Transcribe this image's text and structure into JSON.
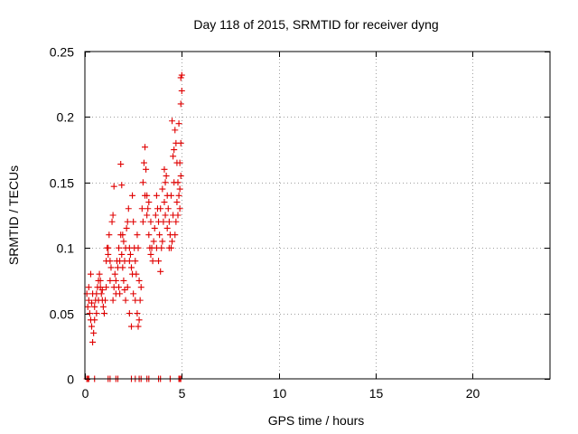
{
  "chart_data": {
    "type": "scatter",
    "title": "Day 118 of 2015, SRMTID for receiver dyng",
    "xlabel": "GPS time / hours",
    "ylabel": "SRMTID / TECUs",
    "xlim": [
      0,
      24
    ],
    "ylim": [
      0,
      0.25
    ],
    "xticks": [
      0,
      5,
      10,
      15,
      20
    ],
    "xtick_labels": [
      "0",
      "5",
      "10",
      "15",
      "20"
    ],
    "yticks": [
      0,
      0.05,
      0.1,
      0.15,
      0.2,
      0.25
    ],
    "ytick_labels": [
      "0",
      "0.05",
      "0.1",
      "0.15",
      "0.2",
      "0.25"
    ],
    "grid": true,
    "marker": "plus",
    "series": [
      {
        "name": "SRMTID",
        "color": "#e00000",
        "points": [
          [
            0.1,
            0.065
          ],
          [
            0.2,
            0.06
          ],
          [
            0.25,
            0.05
          ],
          [
            0.3,
            0.045
          ],
          [
            0.35,
            0.04
          ],
          [
            0.4,
            0.028
          ],
          [
            0.45,
            0.035
          ],
          [
            0.5,
            0.055
          ],
          [
            0.55,
            0.06
          ],
          [
            0.6,
            0.065
          ],
          [
            0.65,
            0.07
          ],
          [
            0.7,
            0.075
          ],
          [
            0.75,
            0.08
          ],
          [
            0.8,
            0.07
          ],
          [
            0.85,
            0.065
          ],
          [
            0.9,
            0.06
          ],
          [
            0.95,
            0.055
          ],
          [
            1.0,
            0.05
          ],
          [
            1.05,
            0.06
          ],
          [
            1.1,
            0.07
          ],
          [
            0.2,
            0.07
          ],
          [
            0.3,
            0.08
          ],
          [
            0.4,
            0.065
          ],
          [
            0.5,
            0.045
          ],
          [
            0.6,
            0.05
          ],
          [
            0.7,
            0.06
          ],
          [
            0.8,
            0.075
          ],
          [
            0.9,
            0.068
          ],
          [
            0.15,
            0.055
          ],
          [
            0.35,
            0.058
          ],
          [
            1.15,
            0.1
          ],
          [
            1.2,
            0.095
          ],
          [
            1.25,
            0.11
          ],
          [
            1.3,
            0.09
          ],
          [
            1.35,
            0.085
          ],
          [
            1.4,
            0.12
          ],
          [
            1.45,
            0.125
          ],
          [
            1.5,
            0.147
          ],
          [
            1.55,
            0.08
          ],
          [
            1.6,
            0.075
          ],
          [
            1.1,
            0.09
          ],
          [
            1.2,
            0.1
          ],
          [
            1.3,
            0.075
          ],
          [
            1.45,
            0.06
          ],
          [
            1.5,
            0.07
          ],
          [
            1.6,
            0.065
          ],
          [
            1.65,
            0.09
          ],
          [
            1.7,
            0.085
          ],
          [
            1.75,
            0.07
          ],
          [
            1.8,
            0.065
          ],
          [
            1.85,
            0.164
          ],
          [
            1.9,
            0.148
          ],
          [
            1.95,
            0.11
          ],
          [
            2.0,
            0.105
          ],
          [
            2.05,
            0.09
          ],
          [
            2.1,
            0.1
          ],
          [
            2.15,
            0.115
          ],
          [
            2.2,
            0.12
          ],
          [
            2.25,
            0.13
          ],
          [
            2.3,
            0.1
          ],
          [
            1.85,
            0.11
          ],
          [
            1.9,
            0.095
          ],
          [
            1.95,
            0.085
          ],
          [
            2.0,
            0.075
          ],
          [
            2.05,
            0.068
          ],
          [
            2.1,
            0.06
          ],
          [
            2.2,
            0.07
          ],
          [
            2.3,
            0.09
          ],
          [
            1.8,
            0.09
          ],
          [
            1.75,
            0.1
          ],
          [
            2.35,
            0.095
          ],
          [
            2.4,
            0.085
          ],
          [
            2.45,
            0.14
          ],
          [
            2.5,
            0.12
          ],
          [
            2.55,
            0.1
          ],
          [
            2.6,
            0.09
          ],
          [
            2.65,
            0.08
          ],
          [
            2.7,
            0.11
          ],
          [
            2.75,
            0.1
          ],
          [
            2.8,
            0.075
          ],
          [
            2.4,
            0.04
          ],
          [
            2.5,
            0.065
          ],
          [
            2.6,
            0.06
          ],
          [
            2.7,
            0.05
          ],
          [
            2.75,
            0.04
          ],
          [
            2.8,
            0.045
          ],
          [
            2.85,
            0.06
          ],
          [
            2.9,
            0.07
          ],
          [
            2.3,
            0.05
          ],
          [
            2.45,
            0.08
          ],
          [
            2.95,
            0.13
          ],
          [
            3.0,
            0.12
          ],
          [
            3.05,
            0.165
          ],
          [
            3.1,
            0.177
          ],
          [
            3.15,
            0.16
          ],
          [
            3.2,
            0.14
          ],
          [
            3.25,
            0.13
          ],
          [
            3.3,
            0.11
          ],
          [
            3.35,
            0.1
          ],
          [
            3.4,
            0.095
          ],
          [
            3.0,
            0.15
          ],
          [
            3.1,
            0.14
          ],
          [
            3.2,
            0.125
          ],
          [
            3.3,
            0.135
          ],
          [
            3.4,
            0.12
          ],
          [
            3.45,
            0.1
          ],
          [
            3.5,
            0.09
          ],
          [
            3.55,
            0.105
          ],
          [
            3.6,
            0.115
          ],
          [
            3.65,
            0.125
          ],
          [
            3.7,
            0.14
          ],
          [
            3.75,
            0.13
          ],
          [
            3.8,
            0.12
          ],
          [
            3.85,
            0.11
          ],
          [
            3.9,
            0.082
          ],
          [
            3.95,
            0.1
          ],
          [
            4.0,
            0.105
          ],
          [
            4.05,
            0.12
          ],
          [
            4.1,
            0.135
          ],
          [
            4.15,
            0.15
          ],
          [
            3.7,
            0.1
          ],
          [
            3.8,
            0.09
          ],
          [
            3.9,
            0.13
          ],
          [
            4.0,
            0.145
          ],
          [
            4.1,
            0.16
          ],
          [
            4.2,
            0.155
          ],
          [
            4.25,
            0.14
          ],
          [
            4.3,
            0.13
          ],
          [
            4.35,
            0.12
          ],
          [
            4.4,
            0.11
          ],
          [
            4.45,
            0.1
          ],
          [
            4.5,
            0.105
          ],
          [
            4.55,
            0.17
          ],
          [
            4.6,
            0.175
          ],
          [
            4.65,
            0.19
          ],
          [
            4.7,
            0.18
          ],
          [
            4.75,
            0.165
          ],
          [
            4.8,
            0.15
          ],
          [
            4.85,
            0.14
          ],
          [
            4.9,
            0.13
          ],
          [
            4.5,
            0.197
          ],
          [
            4.6,
            0.15
          ],
          [
            4.7,
            0.12
          ],
          [
            4.8,
            0.125
          ],
          [
            4.9,
            0.145
          ],
          [
            4.95,
            0.18
          ],
          [
            4.95,
            0.21
          ],
          [
            5.0,
            0.232
          ],
          [
            4.95,
            0.23
          ],
          [
            5.0,
            0.22
          ],
          [
            4.95,
            0.155
          ],
          [
            4.9,
            0.165
          ],
          [
            4.85,
            0.195
          ],
          [
            4.75,
            0.135
          ],
          [
            4.65,
            0.11
          ],
          [
            4.55,
            0.125
          ],
          [
            4.45,
            0.14
          ],
          [
            4.35,
            0.1
          ],
          [
            4.25,
            0.115
          ],
          [
            4.15,
            0.125
          ],
          [
            0.1,
            0.0
          ],
          [
            0.15,
            0.0
          ],
          [
            0.2,
            0.0
          ],
          [
            0.5,
            0.0
          ],
          [
            1.2,
            0.0
          ],
          [
            1.3,
            0.0
          ],
          [
            1.6,
            0.0
          ],
          [
            1.7,
            0.0
          ],
          [
            2.4,
            0.0
          ],
          [
            2.6,
            0.0
          ],
          [
            2.8,
            0.0
          ],
          [
            2.9,
            0.0
          ],
          [
            3.2,
            0.0
          ],
          [
            3.3,
            0.0
          ],
          [
            3.8,
            0.0
          ],
          [
            3.9,
            0.0
          ],
          [
            4.4,
            0.0
          ],
          [
            4.85,
            0.0
          ],
          [
            4.9,
            0.0
          ],
          [
            4.95,
            0.0
          ]
        ]
      }
    ]
  }
}
